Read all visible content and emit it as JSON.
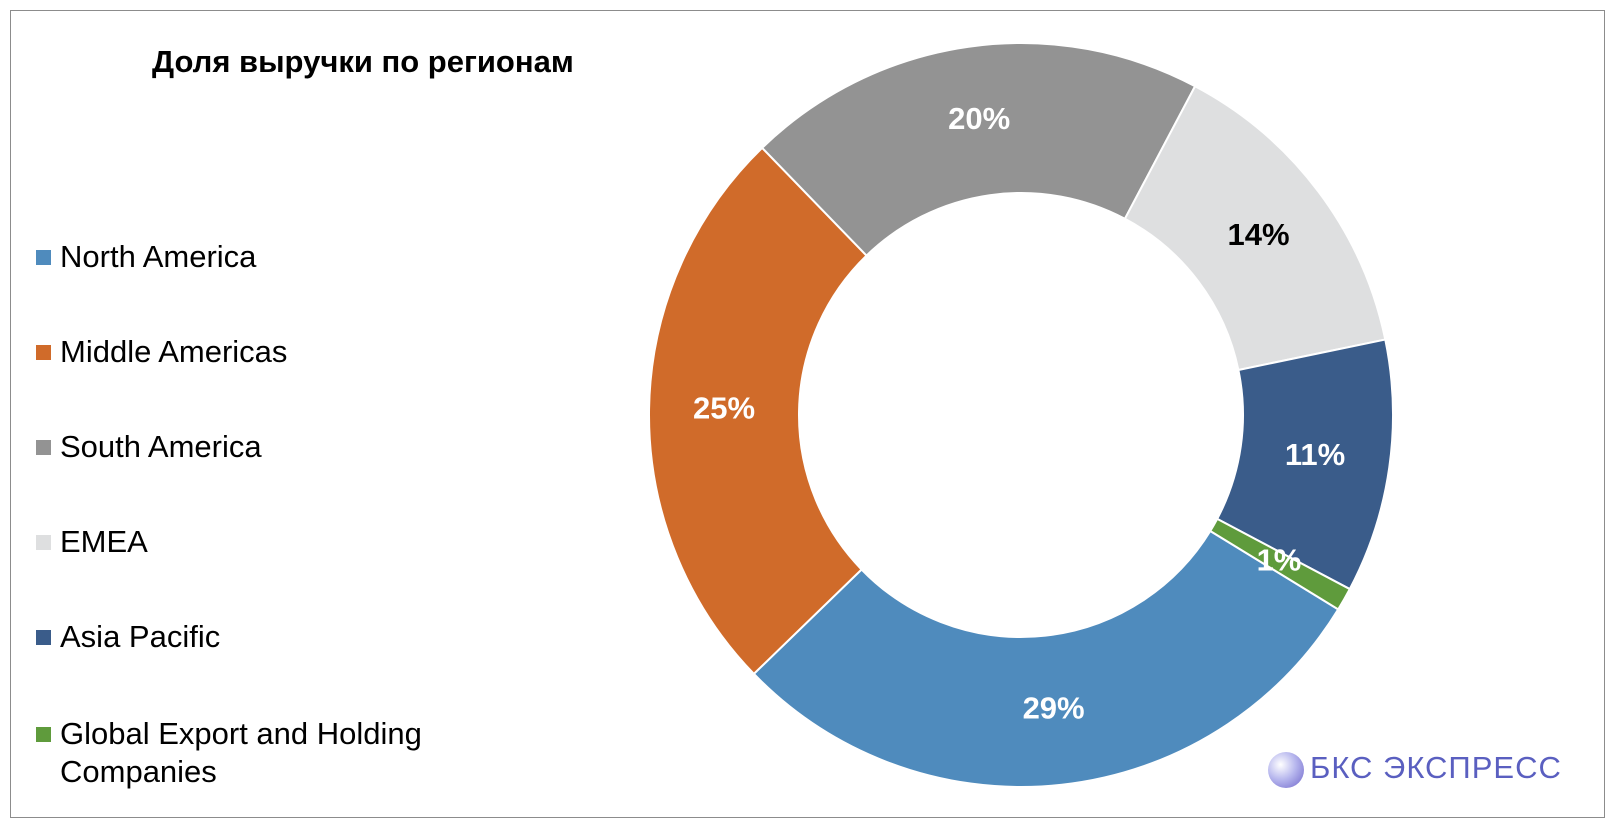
{
  "chart_data": {
    "type": "donut",
    "title": "Доля выручки по регионам",
    "categories": [
      "North America",
      "Middle Americas",
      "South America",
      "EMEA",
      "Asia Pacific",
      "Global Export and Holding Companies"
    ],
    "values": [
      29,
      25,
      20,
      14,
      11,
      1
    ],
    "value_labels": [
      "29%",
      "25%",
      "20%",
      "14%",
      "11%",
      "1%"
    ],
    "colors": [
      "#4f8bbd",
      "#d06b2a",
      "#939393",
      "#dedfe0",
      "#3a5c8a",
      "#5f9b3c"
    ],
    "label_colors": [
      "#ffffff",
      "#ffffff",
      "#ffffff",
      "#000000",
      "#ffffff",
      "#ffffff"
    ],
    "legend": "left"
  },
  "brand": "БКС ЭКСПРЕСС"
}
